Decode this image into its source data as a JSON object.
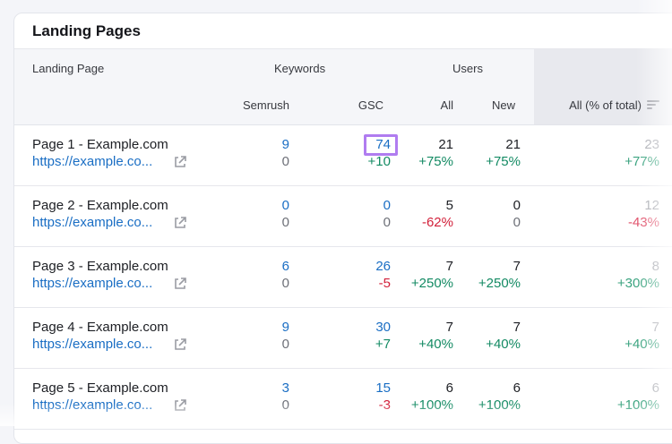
{
  "title": "Landing Pages",
  "columns": {
    "landing_page": "Landing Page",
    "keywords": "Keywords",
    "users": "Users",
    "semrush": "Semrush",
    "gsc": "GSC",
    "all": "All",
    "new": "New",
    "all_pct": "All (% of total)"
  },
  "rows": [
    {
      "name": "Page 1 - Example.com",
      "url": "https://example.co...",
      "semrush": "9",
      "semrush_delta": "0",
      "gsc": "74",
      "gsc_delta": "+10",
      "all": "21",
      "all_delta": "+75%",
      "new": "21",
      "new_delta": "+75%",
      "pct": "23",
      "pct_delta": "+77%"
    },
    {
      "name": "Page 2 - Example.com",
      "url": "https://example.co...",
      "semrush": "0",
      "semrush_delta": "0",
      "gsc": "0",
      "gsc_delta": "0",
      "all": "5",
      "all_delta": "-62%",
      "new": "0",
      "new_delta": "0",
      "pct": "12",
      "pct_delta": "-43%"
    },
    {
      "name": "Page 3 - Example.com",
      "url": "https://example.co...",
      "semrush": "6",
      "semrush_delta": "0",
      "gsc": "26",
      "gsc_delta": "-5",
      "all": "7",
      "all_delta": "+250%",
      "new": "7",
      "new_delta": "+250%",
      "pct": "8",
      "pct_delta": "+300%"
    },
    {
      "name": "Page 4 - Example.com",
      "url": "https://example.co...",
      "semrush": "9",
      "semrush_delta": "0",
      "gsc": "30",
      "gsc_delta": "+7",
      "all": "7",
      "all_delta": "+40%",
      "new": "7",
      "new_delta": "+40%",
      "pct": "7",
      "pct_delta": "+40%"
    },
    {
      "name": "Page 5 - Example.com",
      "url": "https://example.co...",
      "semrush": "3",
      "semrush_delta": "0",
      "gsc": "15",
      "gsc_delta": "-3",
      "all": "6",
      "all_delta": "+100%",
      "new": "6",
      "new_delta": "+100%",
      "pct": "6",
      "pct_delta": "+100%"
    }
  ],
  "highlight_color": "#b07cf0",
  "colors": {
    "link": "#1a6ec4",
    "positive": "#138a63",
    "negative": "#d2203a"
  }
}
